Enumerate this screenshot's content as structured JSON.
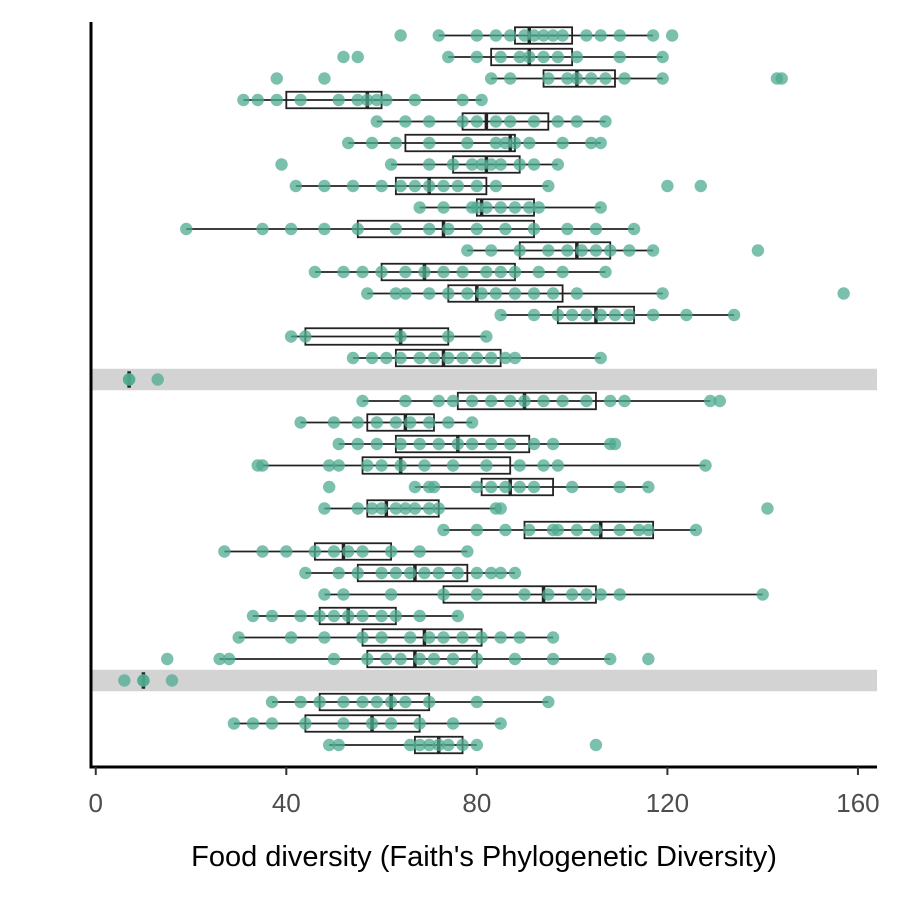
{
  "chart_data": {
    "type": "boxplot",
    "title": "",
    "xlabel": "Food diversity (Faith's Phylogenetic Diversity)",
    "ylabel": "",
    "xlim": [
      -1,
      164
    ],
    "x_ticks": [
      0,
      40,
      80,
      120,
      160
    ],
    "y_ticks_shown": false,
    "grid": false,
    "legend": "none",
    "colors": {
      "points": "#4fab90",
      "box": "#222222",
      "highlight": "#d3d3d3",
      "axis": "#000000"
    },
    "highlighted_rows": [
      17,
      31
    ],
    "rows": [
      {
        "min": 72,
        "q1": 88,
        "median": 91,
        "q3": 100,
        "max": 117,
        "points": [
          64,
          72,
          80,
          84,
          87,
          90,
          92,
          94,
          96,
          98,
          103,
          106,
          110,
          117,
          121
        ]
      },
      {
        "min": 74,
        "q1": 83,
        "median": 91,
        "q3": 100,
        "max": 119,
        "points": [
          52,
          55,
          74,
          80,
          85,
          89,
          91,
          94,
          97,
          101,
          110,
          119
        ]
      },
      {
        "min": 83,
        "q1": 94,
        "median": 101,
        "q3": 109,
        "max": 119,
        "points": [
          38,
          48,
          83,
          87,
          95,
          99,
          101,
          104,
          107,
          111,
          119,
          143,
          144
        ]
      },
      {
        "min": 31,
        "q1": 40,
        "median": 57,
        "q3": 60,
        "max": 81,
        "points": [
          31,
          34,
          38,
          43,
          51,
          55,
          57,
          59,
          61,
          67,
          77,
          81
        ]
      },
      {
        "min": 59,
        "q1": 77,
        "median": 82,
        "q3": 95,
        "max": 107,
        "points": [
          59,
          65,
          70,
          77,
          80,
          84,
          87,
          92,
          97,
          101,
          107
        ]
      },
      {
        "min": 53,
        "q1": 65,
        "median": 87,
        "q3": 88,
        "max": 106,
        "points": [
          53,
          58,
          63,
          70,
          78,
          84,
          86,
          88,
          91,
          98,
          104,
          106
        ]
      },
      {
        "min": 62,
        "q1": 75,
        "median": 82,
        "q3": 89,
        "max": 97,
        "points": [
          39,
          62,
          70,
          75,
          79,
          81,
          83,
          85,
          89,
          92,
          97
        ]
      },
      {
        "min": 42,
        "q1": 63,
        "median": 70,
        "q3": 82,
        "max": 95,
        "points": [
          42,
          48,
          54,
          60,
          64,
          67,
          70,
          73,
          76,
          80,
          84,
          95,
          120,
          127
        ]
      },
      {
        "min": 68,
        "q1": 80,
        "median": 81,
        "q3": 92,
        "max": 106,
        "points": [
          68,
          73,
          79,
          80,
          82,
          85,
          88,
          91,
          93,
          106
        ]
      },
      {
        "min": 19,
        "q1": 55,
        "median": 73,
        "q3": 92,
        "max": 113,
        "points": [
          19,
          35,
          41,
          48,
          55,
          63,
          70,
          74,
          80,
          86,
          92,
          99,
          105,
          113
        ]
      },
      {
        "min": 78,
        "q1": 89,
        "median": 101,
        "q3": 108,
        "max": 117,
        "points": [
          78,
          83,
          89,
          95,
          99,
          102,
          105,
          108,
          112,
          117,
          139
        ]
      },
      {
        "min": 46,
        "q1": 60,
        "median": 69,
        "q3": 88,
        "max": 107,
        "points": [
          46,
          52,
          56,
          60,
          65,
          69,
          73,
          77,
          82,
          85,
          88,
          93,
          98,
          107
        ]
      },
      {
        "min": 57,
        "q1": 74,
        "median": 80,
        "q3": 98,
        "max": 119,
        "points": [
          57,
          63,
          65,
          70,
          74,
          78,
          81,
          84,
          88,
          92,
          96,
          101,
          119,
          157
        ]
      },
      {
        "min": 85,
        "q1": 97,
        "median": 105,
        "q3": 113,
        "max": 134,
        "points": [
          85,
          92,
          97,
          100,
          103,
          106,
          109,
          112,
          117,
          124,
          134
        ]
      },
      {
        "min": 41,
        "q1": 44,
        "median": 64,
        "q3": 74,
        "max": 82,
        "points": [
          41,
          44,
          64,
          74,
          82
        ]
      },
      {
        "min": 54,
        "q1": 63,
        "median": 73,
        "q3": 85,
        "max": 106,
        "points": [
          54,
          58,
          61,
          64,
          68,
          71,
          74,
          77,
          80,
          83,
          86,
          88,
          106
        ]
      },
      {
        "min": 7,
        "q1": 7,
        "median": 7,
        "q3": 7,
        "max": 7,
        "points": [
          7,
          7,
          13
        ]
      },
      {
        "min": 56,
        "q1": 76,
        "median": 90,
        "q3": 105,
        "max": 129,
        "points": [
          56,
          65,
          72,
          75,
          79,
          83,
          87,
          90,
          94,
          98,
          103,
          108,
          111,
          129,
          131
        ]
      },
      {
        "min": 43,
        "q1": 57,
        "median": 65,
        "q3": 71,
        "max": 79,
        "points": [
          43,
          50,
          55,
          59,
          63,
          66,
          70,
          74,
          79
        ]
      },
      {
        "min": 51,
        "q1": 63,
        "median": 76,
        "q3": 91,
        "max": 109,
        "points": [
          51,
          55,
          59,
          64,
          68,
          72,
          76,
          79,
          83,
          87,
          92,
          96,
          108,
          109
        ]
      },
      {
        "min": 35,
        "q1": 56,
        "median": 64,
        "q3": 87,
        "max": 128,
        "points": [
          34,
          35,
          49,
          51,
          57,
          60,
          64,
          69,
          75,
          82,
          89,
          94,
          97,
          128
        ]
      },
      {
        "min": 67,
        "q1": 81,
        "median": 87,
        "q3": 96,
        "max": 116,
        "points": [
          49,
          67,
          70,
          71,
          80,
          83,
          86,
          89,
          92,
          100,
          110,
          116
        ]
      },
      {
        "min": 48,
        "q1": 57,
        "median": 61,
        "q3": 72,
        "max": 84,
        "points": [
          48,
          55,
          58,
          60,
          63,
          65,
          67,
          70,
          72,
          84,
          85,
          141
        ]
      },
      {
        "min": 73,
        "q1": 90,
        "median": 106,
        "q3": 117,
        "max": 126,
        "points": [
          73,
          80,
          86,
          91,
          96,
          101,
          105,
          110,
          114,
          116,
          126,
          97
        ]
      },
      {
        "min": 27,
        "q1": 46,
        "median": 52,
        "q3": 62,
        "max": 78,
        "points": [
          27,
          35,
          40,
          46,
          50,
          53,
          56,
          62,
          68,
          78
        ]
      },
      {
        "min": 44,
        "q1": 55,
        "median": 67,
        "q3": 78,
        "max": 88,
        "points": [
          44,
          51,
          55,
          60,
          63,
          66,
          69,
          72,
          76,
          80,
          83,
          85,
          88
        ]
      },
      {
        "min": 48,
        "q1": 73,
        "median": 94,
        "q3": 105,
        "max": 140,
        "points": [
          48,
          52,
          62,
          73,
          80,
          90,
          95,
          100,
          103,
          106,
          110,
          140
        ]
      },
      {
        "min": 33,
        "q1": 47,
        "median": 53,
        "q3": 63,
        "max": 76,
        "points": [
          33,
          37,
          43,
          47,
          50,
          53,
          56,
          60,
          63,
          68,
          76
        ]
      },
      {
        "min": 30,
        "q1": 56,
        "median": 69,
        "q3": 81,
        "max": 96,
        "points": [
          30,
          41,
          48,
          56,
          60,
          66,
          70,
          73,
          77,
          81,
          85,
          89,
          96
        ]
      },
      {
        "min": 26,
        "q1": 57,
        "median": 67,
        "q3": 80,
        "max": 108,
        "points": [
          15,
          26,
          28,
          50,
          57,
          61,
          64,
          68,
          71,
          75,
          80,
          88,
          96,
          108,
          116
        ]
      },
      {
        "min": 10,
        "q1": 10,
        "median": 10,
        "q3": 10,
        "max": 10,
        "points": [
          6,
          10,
          10,
          16
        ]
      },
      {
        "min": 37,
        "q1": 47,
        "median": 62,
        "q3": 70,
        "max": 95,
        "points": [
          37,
          43,
          47,
          52,
          56,
          59,
          62,
          65,
          70,
          80,
          95
        ]
      },
      {
        "min": 29,
        "q1": 44,
        "median": 58,
        "q3": 68,
        "max": 85,
        "points": [
          29,
          33,
          37,
          44,
          52,
          58,
          62,
          68,
          75,
          85
        ]
      },
      {
        "min": 49,
        "q1": 67,
        "median": 72,
        "q3": 77,
        "max": 80,
        "points": [
          49,
          51,
          66,
          68,
          70,
          72,
          74,
          77,
          80,
          105
        ]
      }
    ]
  }
}
